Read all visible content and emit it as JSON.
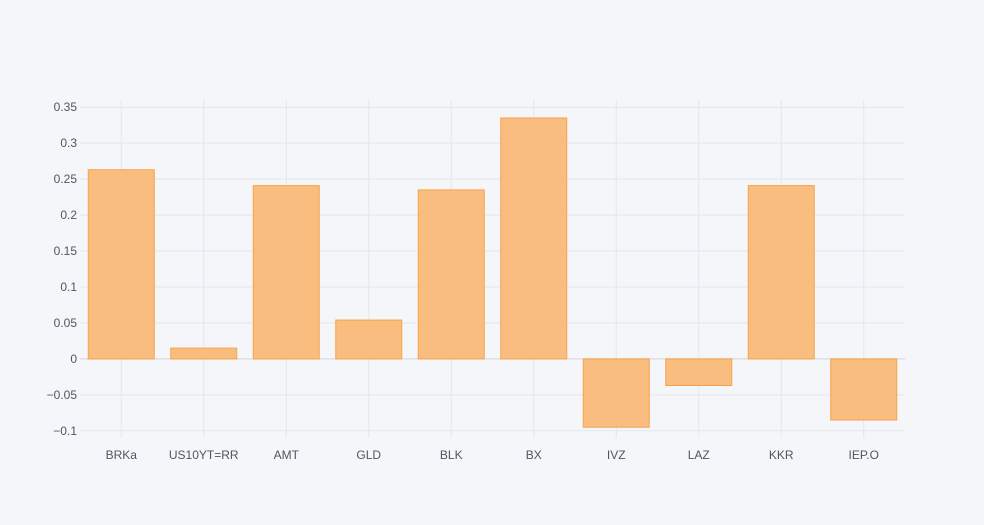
{
  "chart_data": {
    "type": "bar",
    "title": "",
    "xlabel": "",
    "ylabel": "",
    "categories": [
      "BRKa",
      "US10YT=RR",
      "AMT",
      "GLD",
      "BLK",
      "BX",
      "IVZ",
      "LAZ",
      "KKR",
      "IEP.O"
    ],
    "values": [
      0.263,
      0.015,
      0.241,
      0.054,
      0.235,
      0.335,
      -0.095,
      -0.037,
      0.241,
      -0.085
    ],
    "ylim": [
      -0.11,
      0.36
    ],
    "yticks": [
      -0.1,
      -0.05,
      0,
      0.05,
      0.1,
      0.15,
      0.2,
      0.25,
      0.3,
      0.35
    ],
    "ytick_labels": [
      "−0.1",
      "−0.05",
      "0",
      "0.05",
      "0.1",
      "0.15",
      "0.2",
      "0.25",
      "0.3",
      "0.35"
    ],
    "grid": true,
    "legend": "none",
    "colors": {
      "background": "#f5f6f9",
      "bar_fill": "#f9bd80",
      "bar_stroke": "#f7a349",
      "grid": "#e3e6ed",
      "zero_line": "#dcdfe6",
      "tick_text": "#4d5663"
    }
  }
}
